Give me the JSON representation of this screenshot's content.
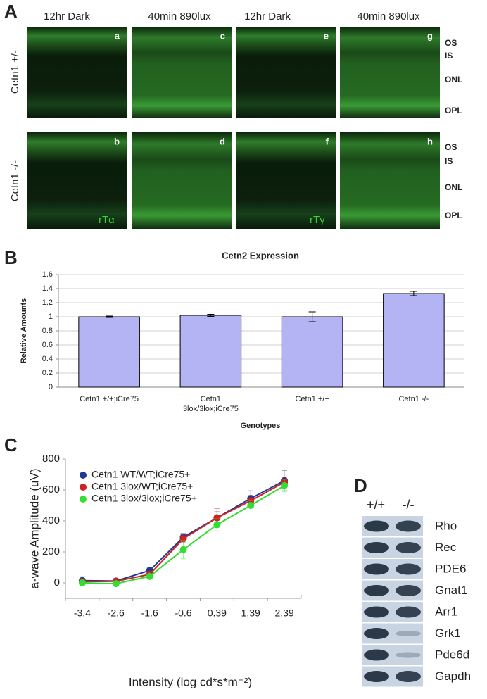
{
  "panel_labels": [
    "A",
    "B",
    "C",
    "D"
  ],
  "panel_a": {
    "column_headers": [
      "12hr Dark",
      "40min 890lux",
      "12hr Dark",
      "40min 890lux"
    ],
    "row_labels": [
      "Cetn1 +/-",
      "Cetn1 -/-"
    ],
    "image_letters": [
      [
        "a",
        "c",
        "e",
        "g"
      ],
      [
        "b",
        "d",
        "f",
        "h"
      ]
    ],
    "layer_labels": [
      [
        "OS",
        "IS",
        "ONL",
        "OPL"
      ],
      [
        "OS",
        "IS",
        "ONL",
        "OPL"
      ]
    ],
    "stain_labels": [
      "rTα",
      "rTγ"
    ]
  },
  "chart_data": [
    {
      "type": "bar",
      "title": "Cetn2 Expression",
      "y_label": "Relative Amounts",
      "x_label": "Genotypes",
      "categories": [
        "Cetn1 +/+;iCre75",
        "Cetn1 3lox/3lox;iCre75",
        "Cetn1 +/+",
        "Cetn1 -/-"
      ],
      "values": [
        1.0,
        1.02,
        1.0,
        1.33
      ],
      "errors": [
        0.01,
        0.015,
        0.07,
        0.03
      ],
      "color": "#b4b4f4",
      "ylim": [
        0,
        1.6
      ],
      "yticks": [
        0,
        0.2,
        0.4,
        0.6,
        0.8,
        1,
        1.2,
        1.4,
        1.6
      ],
      "grid": true
    },
    {
      "type": "line",
      "y_label": "a-wave Amplitude (uV)",
      "x_label": "Intensity (log cd*s*m⁻²)",
      "categories": [
        "-3.4",
        "-2.6",
        "-1.6",
        "-0.6",
        "0.39",
        "1.39",
        "2.39"
      ],
      "series": [
        {
          "name": "Cetn1 WT/WT;iCre75+",
          "color": "#1f3a93",
          "values": [
            15,
            12,
            80,
            295,
            420,
            545,
            660
          ],
          "errors": [
            25,
            15,
            20,
            25,
            60,
            50,
            65
          ]
        },
        {
          "name": "Cetn1 3lox/WT;iCre75+",
          "color": "#cc2222",
          "values": [
            8,
            10,
            55,
            285,
            420,
            530,
            650
          ],
          "errors": [
            15,
            15,
            20,
            25,
            40,
            35,
            30
          ]
        },
        {
          "name": "Cetn1 3lox/3lox;iCre75+",
          "color": "#33dd33",
          "values": [
            0,
            -5,
            42,
            215,
            375,
            500,
            628
          ],
          "errors": [
            15,
            15,
            15,
            60,
            40,
            30,
            40
          ]
        }
      ],
      "ylim": [
        -100,
        800
      ],
      "yticks": [
        0,
        200,
        400,
        600,
        800
      ],
      "grid": false,
      "legend": "top-left"
    }
  ],
  "panel_d": {
    "column_headers": [
      "+/+",
      "-/-"
    ],
    "proteins": [
      "Rho",
      "Rec",
      "PDE6",
      "Gnat1",
      "Arr1",
      "Grk1",
      "Pde6d",
      "Gapdh"
    ]
  }
}
